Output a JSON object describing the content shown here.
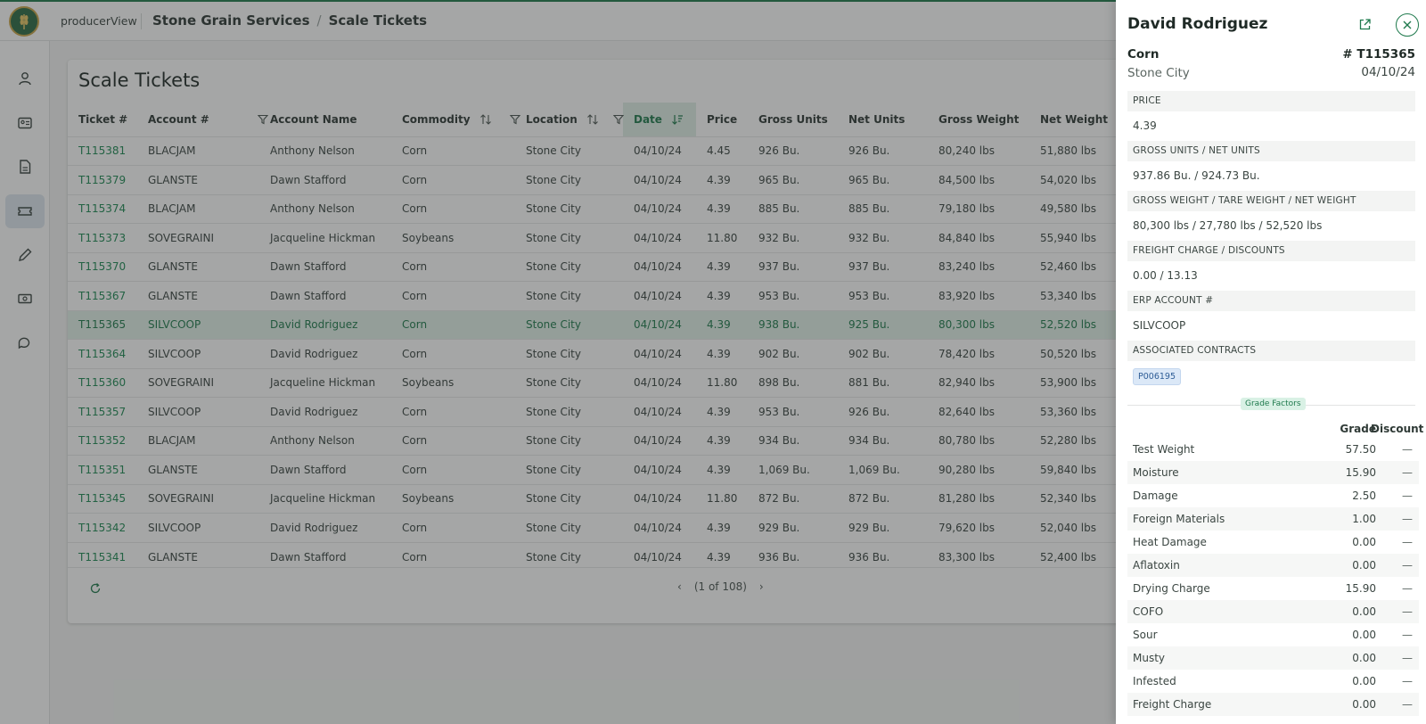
{
  "app": {
    "brand": "producerView",
    "breadcrumb": [
      "Stone Grain Services",
      "Scale Tickets"
    ]
  },
  "sidebar": {
    "items": [
      {
        "icon": "user-icon"
      },
      {
        "icon": "id-card-icon"
      },
      {
        "icon": "document-icon"
      },
      {
        "icon": "ticket-icon",
        "active": true
      },
      {
        "icon": "pencil-icon"
      },
      {
        "icon": "money-icon"
      },
      {
        "icon": "chat-icon"
      }
    ]
  },
  "table": {
    "title": "Scale Tickets",
    "columns": [
      "Ticket #",
      "Account #",
      "Account Name",
      "Commodity",
      "Location",
      "Date",
      "Price",
      "Gross Units",
      "Net Units",
      "Gross Weight",
      "Net Weight"
    ],
    "rows": [
      [
        "T115381",
        "BLACJAM",
        "Anthony Nelson",
        "Corn",
        "Stone City",
        "04/10/24",
        "4.45",
        "926 Bu.",
        "926 Bu.",
        "80,240 lbs",
        "51,880 lbs"
      ],
      [
        "T115379",
        "GLANSTE",
        "Dawn Stafford",
        "Corn",
        "Stone City",
        "04/10/24",
        "4.39",
        "965 Bu.",
        "965 Bu.",
        "84,500 lbs",
        "54,020 lbs"
      ],
      [
        "T115374",
        "BLACJAM",
        "Anthony Nelson",
        "Corn",
        "Stone City",
        "04/10/24",
        "4.39",
        "885 Bu.",
        "885 Bu.",
        "79,180 lbs",
        "49,580 lbs"
      ],
      [
        "T115373",
        "SOVEGRAINI",
        "Jacqueline Hickman",
        "Soybeans",
        "Stone City",
        "04/10/24",
        "11.80",
        "932 Bu.",
        "932 Bu.",
        "84,840 lbs",
        "55,940 lbs"
      ],
      [
        "T115370",
        "GLANSTE",
        "Dawn Stafford",
        "Corn",
        "Stone City",
        "04/10/24",
        "4.39",
        "937 Bu.",
        "937 Bu.",
        "83,240 lbs",
        "52,460 lbs"
      ],
      [
        "T115367",
        "GLANSTE",
        "Dawn Stafford",
        "Corn",
        "Stone City",
        "04/10/24",
        "4.39",
        "953 Bu.",
        "953 Bu.",
        "83,920 lbs",
        "53,340 lbs"
      ],
      [
        "T115365",
        "SILVCOOP",
        "David Rodriguez",
        "Corn",
        "Stone City",
        "04/10/24",
        "4.39",
        "938 Bu.",
        "925 Bu.",
        "80,300 lbs",
        "52,520 lbs"
      ],
      [
        "T115364",
        "SILVCOOP",
        "David Rodriguez",
        "Corn",
        "Stone City",
        "04/10/24",
        "4.39",
        "902 Bu.",
        "902 Bu.",
        "78,420 lbs",
        "50,520 lbs"
      ],
      [
        "T115360",
        "SOVEGRAINI",
        "Jacqueline Hickman",
        "Soybeans",
        "Stone City",
        "04/10/24",
        "11.80",
        "898 Bu.",
        "881 Bu.",
        "82,940 lbs",
        "53,900 lbs"
      ],
      [
        "T115357",
        "SILVCOOP",
        "David Rodriguez",
        "Corn",
        "Stone City",
        "04/10/24",
        "4.39",
        "953 Bu.",
        "926 Bu.",
        "82,640 lbs",
        "53,360 lbs"
      ],
      [
        "T115352",
        "BLACJAM",
        "Anthony Nelson",
        "Corn",
        "Stone City",
        "04/10/24",
        "4.39",
        "934 Bu.",
        "934 Bu.",
        "80,780 lbs",
        "52,280 lbs"
      ],
      [
        "T115351",
        "GLANSTE",
        "Dawn Stafford",
        "Corn",
        "Stone City",
        "04/10/24",
        "4.39",
        "1,069 Bu.",
        "1,069 Bu.",
        "90,280 lbs",
        "59,840 lbs"
      ],
      [
        "T115345",
        "SOVEGRAINI",
        "Jacqueline Hickman",
        "Soybeans",
        "Stone City",
        "04/10/24",
        "11.80",
        "872 Bu.",
        "872 Bu.",
        "81,280 lbs",
        "52,340 lbs"
      ],
      [
        "T115342",
        "SILVCOOP",
        "David Rodriguez",
        "Corn",
        "Stone City",
        "04/10/24",
        "4.39",
        "929 Bu.",
        "929 Bu.",
        "79,620 lbs",
        "52,040 lbs"
      ],
      [
        "T115341",
        "GLANSTE",
        "Dawn Stafford",
        "Corn",
        "Stone City",
        "04/10/24",
        "4.39",
        "936 Bu.",
        "936 Bu.",
        "83,300 lbs",
        "52,400 lbs"
      ]
    ],
    "pagination": "(1 of 108)"
  },
  "detail": {
    "name": "David Rodriguez",
    "commodity": "Corn",
    "location": "Stone City",
    "ticket": "# T115365",
    "date": "04/10/24",
    "sections": [
      {
        "label": "PRICE",
        "value": "4.39"
      },
      {
        "label": "GROSS UNITS / NET UNITS",
        "value": "937.86 Bu. / 924.73 Bu."
      },
      {
        "label": "GROSS WEIGHT / TARE WEIGHT / NET WEIGHT",
        "value": "80,300 lbs / 27,780 lbs / 52,520 lbs"
      },
      {
        "label": "FREIGHT CHARGE / DISCOUNTS",
        "value": "0.00 / 13.13"
      },
      {
        "label": "ERP ACCOUNT #",
        "value": "SILVCOOP"
      },
      {
        "label": "ASSOCIATED CONTRACTS",
        "chip": "P006195"
      }
    ],
    "grade_factors_label": "Grade Factors",
    "grade_header": "Grade",
    "discount_header": "Discount",
    "grade_factors": [
      {
        "name": "Test Weight",
        "grade": "57.50",
        "discount": "—"
      },
      {
        "name": "Moisture",
        "grade": "15.90",
        "discount": "—"
      },
      {
        "name": "Damage",
        "grade": "2.50",
        "discount": "—"
      },
      {
        "name": "Foreign Materials",
        "grade": "1.00",
        "discount": "—"
      },
      {
        "name": "Heat Damage",
        "grade": "0.00",
        "discount": "—"
      },
      {
        "name": "Aflatoxin",
        "grade": "0.00",
        "discount": "—"
      },
      {
        "name": "Drying Charge",
        "grade": "15.90",
        "discount": "—"
      },
      {
        "name": "COFO",
        "grade": "0.00",
        "discount": "—"
      },
      {
        "name": "Sour",
        "grade": "0.00",
        "discount": "—"
      },
      {
        "name": "Musty",
        "grade": "0.00",
        "discount": "—"
      },
      {
        "name": "Infested",
        "grade": "0.00",
        "discount": "—"
      },
      {
        "name": "Freight Charge",
        "grade": "0.00",
        "discount": "—"
      }
    ]
  }
}
